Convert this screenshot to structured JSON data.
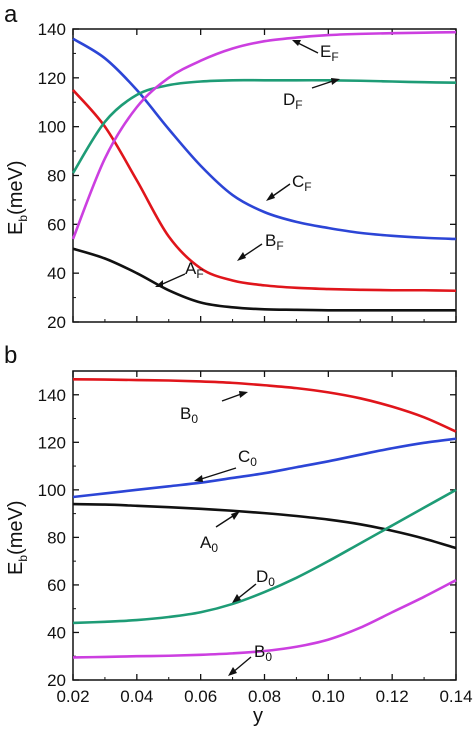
{
  "colors": {
    "black": "#111111",
    "red": "#e0151b",
    "blue": "#2c45d6",
    "green": "#1e9c76",
    "magenta": "#cc3fe0"
  },
  "chart_data": [
    {
      "type": "line",
      "panel_label": "a",
      "xlim": [
        0.02,
        0.14
      ],
      "ylim": [
        20,
        140
      ],
      "ylabel": {
        "main": "E",
        "sub": "b",
        "suffix": "(meV)"
      },
      "xlabel": "",
      "y_ticks": [
        "20",
        "40",
        "60",
        "80",
        "100",
        "120",
        "140"
      ],
      "grid": false,
      "series": [
        {
          "name": "A_F",
          "color": "#111111",
          "x": [
            0.02,
            0.03,
            0.04,
            0.05,
            0.06,
            0.07,
            0.08,
            0.09,
            0.1,
            0.11,
            0.12,
            0.13,
            0.14
          ],
          "y": [
            50,
            46,
            40,
            33,
            28,
            26,
            25.2,
            25,
            24.8,
            24.8,
            24.8,
            24.8,
            24.8
          ]
        },
        {
          "name": "B_F",
          "color": "#e0151b",
          "x": [
            0.02,
            0.03,
            0.04,
            0.05,
            0.06,
            0.07,
            0.08,
            0.09,
            0.1,
            0.11,
            0.12,
            0.13,
            0.14
          ],
          "y": [
            115,
            100,
            78,
            55,
            42,
            37,
            35,
            34,
            33.5,
            33.2,
            33,
            33,
            32.8
          ]
        },
        {
          "name": "C_F",
          "color": "#2c45d6",
          "x": [
            0.02,
            0.03,
            0.04,
            0.05,
            0.06,
            0.07,
            0.08,
            0.09,
            0.1,
            0.11,
            0.12,
            0.13,
            0.14
          ],
          "y": [
            136,
            128,
            115,
            99,
            84,
            72,
            65,
            61,
            58.5,
            56.5,
            55.3,
            54.5,
            54
          ]
        },
        {
          "name": "D_F",
          "color": "#1e9c76",
          "x": [
            0.02,
            0.03,
            0.04,
            0.05,
            0.06,
            0.07,
            0.08,
            0.09,
            0.1,
            0.11,
            0.12,
            0.13,
            0.14
          ],
          "y": [
            81,
            102,
            113,
            117,
            118.5,
            119,
            119,
            119,
            119,
            118.8,
            118.5,
            118.2,
            118
          ]
        },
        {
          "name": "E_F",
          "color": "#cc3fe0",
          "x": [
            0.02,
            0.03,
            0.04,
            0.05,
            0.06,
            0.07,
            0.08,
            0.09,
            0.1,
            0.11,
            0.12,
            0.13,
            0.14
          ],
          "y": [
            54,
            87,
            108,
            120,
            127,
            132,
            135,
            136.5,
            137.5,
            138,
            138.3,
            138.5,
            138.7
          ]
        }
      ],
      "annotations": [
        {
          "base": "A",
          "sub": "F"
        },
        {
          "base": "B",
          "sub": "F"
        },
        {
          "base": "C",
          "sub": "F"
        },
        {
          "base": "D",
          "sub": "F"
        },
        {
          "base": "E",
          "sub": "F"
        }
      ]
    },
    {
      "type": "line",
      "panel_label": "b",
      "xlim": [
        0.02,
        0.14
      ],
      "ylim": [
        20,
        150
      ],
      "xlabel": "y",
      "ylabel": {
        "main": "E",
        "sub": "b",
        "suffix": "(meV)"
      },
      "x_ticks": [
        "0.02",
        "0.04",
        "0.06",
        "0.08",
        "0.10",
        "0.12",
        "0.14"
      ],
      "y_ticks": [
        "20",
        "40",
        "60",
        "80",
        "100",
        "120",
        "140"
      ],
      "grid": false,
      "series": [
        {
          "name": "A_0",
          "color": "#111111",
          "x": [
            0.02,
            0.03,
            0.04,
            0.05,
            0.06,
            0.07,
            0.08,
            0.09,
            0.1,
            0.11,
            0.12,
            0.13,
            0.14
          ],
          "y": [
            94,
            93.8,
            93.3,
            92.7,
            92,
            91.2,
            90.2,
            89,
            87.5,
            85.5,
            82.8,
            79.5,
            75.5
          ]
        },
        {
          "name": "B_0 (upper)",
          "color": "#e0151b",
          "x": [
            0.02,
            0.03,
            0.04,
            0.05,
            0.06,
            0.07,
            0.08,
            0.09,
            0.1,
            0.11,
            0.12,
            0.13,
            0.14
          ],
          "y": [
            146.5,
            146.4,
            146.2,
            146,
            145.6,
            145,
            144,
            142.8,
            141,
            138.5,
            135,
            130.5,
            124.5
          ]
        },
        {
          "name": "C_0",
          "color": "#2c45d6",
          "x": [
            0.02,
            0.03,
            0.04,
            0.05,
            0.06,
            0.07,
            0.08,
            0.09,
            0.1,
            0.11,
            0.12,
            0.13,
            0.14
          ],
          "y": [
            97,
            98.5,
            100,
            101.5,
            103,
            105,
            107,
            109.5,
            112,
            114.8,
            117.5,
            119.8,
            121.5
          ]
        },
        {
          "name": "D_0",
          "color": "#1e9c76",
          "x": [
            0.02,
            0.03,
            0.04,
            0.05,
            0.06,
            0.07,
            0.08,
            0.09,
            0.1,
            0.11,
            0.12,
            0.13,
            0.14
          ],
          "y": [
            44,
            44.5,
            45.2,
            46.5,
            48.5,
            52,
            57,
            63,
            70,
            77.5,
            85,
            92.5,
            100
          ]
        },
        {
          "name": "B_0 (lower)",
          "color": "#cc3fe0",
          "x": [
            0.02,
            0.03,
            0.04,
            0.05,
            0.06,
            0.07,
            0.08,
            0.09,
            0.1,
            0.11,
            0.12,
            0.13,
            0.14
          ],
          "y": [
            29.5,
            29.7,
            30,
            30.2,
            30.6,
            31.2,
            32.2,
            34,
            37,
            42,
            48.5,
            55,
            62
          ]
        }
      ],
      "annotations": [
        {
          "base": "B",
          "sub": "0"
        },
        {
          "base": "C",
          "sub": "0"
        },
        {
          "base": "A",
          "sub": "0"
        },
        {
          "base": "D",
          "sub": "0"
        },
        {
          "base": "B",
          "sub": "0"
        }
      ]
    }
  ]
}
